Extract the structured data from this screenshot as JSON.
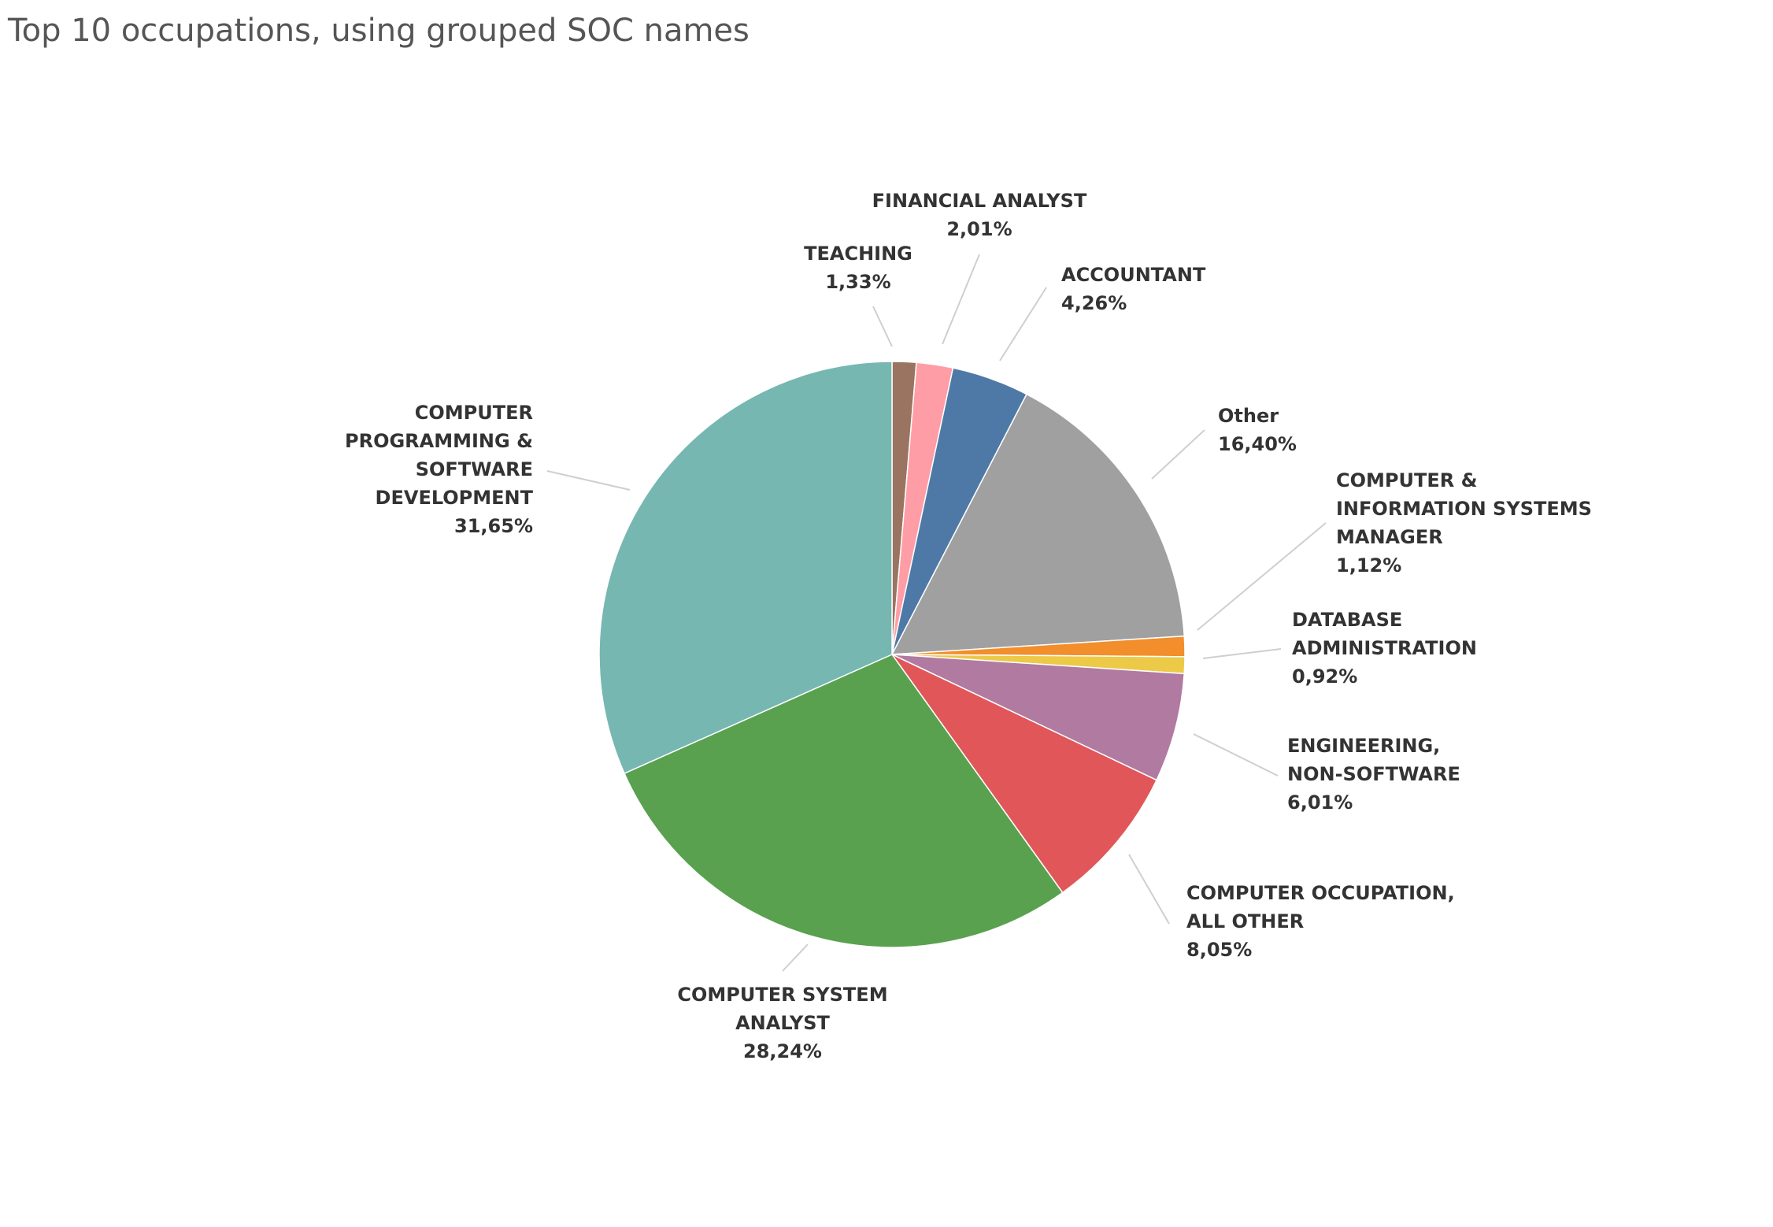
{
  "chart_data": {
    "type": "pie",
    "title": "Top 10 occupations, using grouped SOC names",
    "value_format": "percent_comma",
    "slices": [
      {
        "label": "TEACHING",
        "value": 1.33,
        "color": "#9a7460",
        "display_value": "1,33%"
      },
      {
        "label": "FINANCIAL ANALYST",
        "value": 2.01,
        "color": "#ff9da7",
        "display_value": "2,01%"
      },
      {
        "label": "ACCOUNTANT",
        "value": 4.26,
        "color": "#4e79a7",
        "display_value": "4,26%"
      },
      {
        "label": "Other",
        "value": 16.4,
        "color": "#a0a0a0",
        "display_value": "16,40%"
      },
      {
        "label": "COMPUTER & INFORMATION SYSTEMS MANAGER",
        "value": 1.12,
        "color": "#f28e2b",
        "display_value": "1,12%"
      },
      {
        "label": "DATABASE ADMINISTRATION",
        "value": 0.92,
        "color": "#edc948",
        "display_value": "0,92%"
      },
      {
        "label": "ENGINEERING, NON-SOFTWARE",
        "value": 6.01,
        "color": "#b07aa1",
        "display_value": "6,01%"
      },
      {
        "label": "COMPUTER OCCUPATION, ALL OTHER",
        "value": 8.05,
        "color": "#e15759",
        "display_value": "8,05%"
      },
      {
        "label": "COMPUTER SYSTEM ANALYST",
        "value": 28.24,
        "color": "#59a14f",
        "display_value": "28,24%"
      },
      {
        "label": "COMPUTER PROGRAMMING & SOFTWARE DEVELOPMENT",
        "value": 31.65,
        "color": "#76b7b2",
        "display_value": "31,65%"
      }
    ]
  }
}
